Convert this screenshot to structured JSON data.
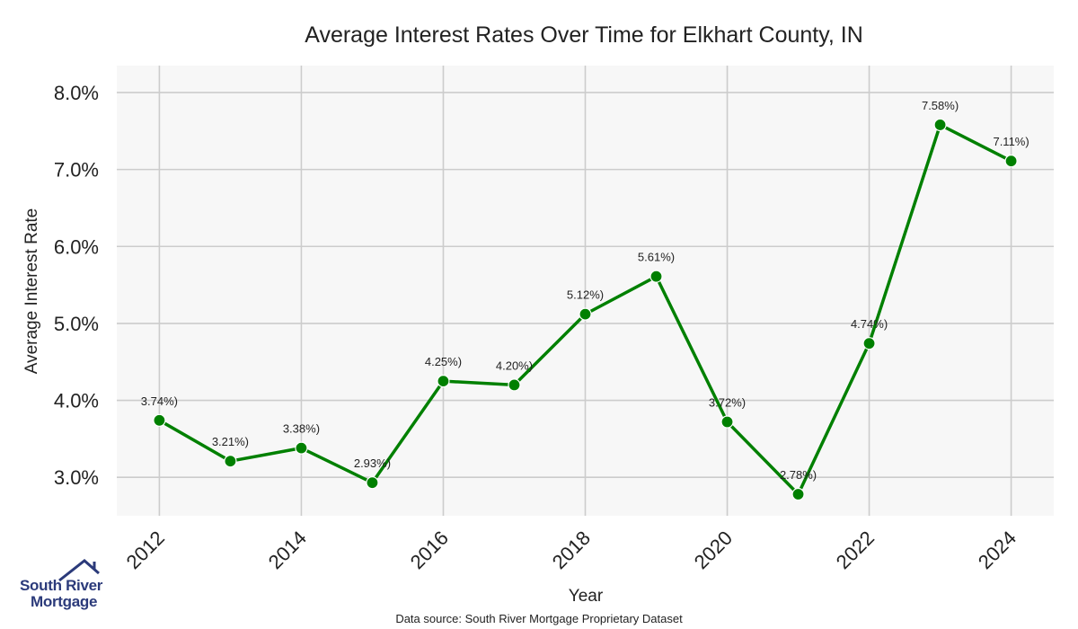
{
  "chart_data": {
    "type": "line",
    "title": "Average Interest Rates Over Time for Elkhart County, IN",
    "xlabel": "Year",
    "ylabel": "Average Interest Rate",
    "x": [
      2012,
      2013,
      2014,
      2015,
      2016,
      2017,
      2018,
      2019,
      2020,
      2021,
      2022,
      2023,
      2024
    ],
    "series": [
      {
        "values": [
          3.74,
          3.21,
          3.38,
          2.93,
          4.25,
          4.2,
          5.12,
          5.61,
          3.72,
          2.78,
          4.74,
          7.58,
          7.11
        ],
        "labels": [
          "3.74%)",
          "3.21%)",
          "3.38%)",
          "2.93%)",
          "4.25%)",
          "4.20%)",
          "5.12%)",
          "5.61%)",
          "3.72%)",
          "2.78%)",
          "4.74%)",
          "7.58%)",
          "7.11%)"
        ],
        "color": "#008000"
      }
    ],
    "xticks": [
      "2012",
      "2014",
      "2016",
      "2018",
      "2020",
      "2022",
      "2024"
    ],
    "yticks": [
      {
        "value": 3.0,
        "label": "3.0%"
      },
      {
        "value": 4.0,
        "label": "4.0%"
      },
      {
        "value": 5.0,
        "label": "5.0%"
      },
      {
        "value": 6.0,
        "label": "6.0%"
      },
      {
        "value": 7.0,
        "label": "7.0%"
      },
      {
        "value": 8.0,
        "label": "8.0%"
      }
    ],
    "xlim": [
      2011.4,
      2024.6
    ],
    "ylim": [
      2.5,
      8.35
    ],
    "grid": true,
    "background": "#f7f7f7",
    "grid_color": "#cccccc"
  },
  "footer": {
    "source": "Data source: South River Mortgage Proprietary Dataset"
  },
  "logo": {
    "line1": "South River",
    "line2": "Mortgage",
    "color": "#2b3a7a"
  }
}
